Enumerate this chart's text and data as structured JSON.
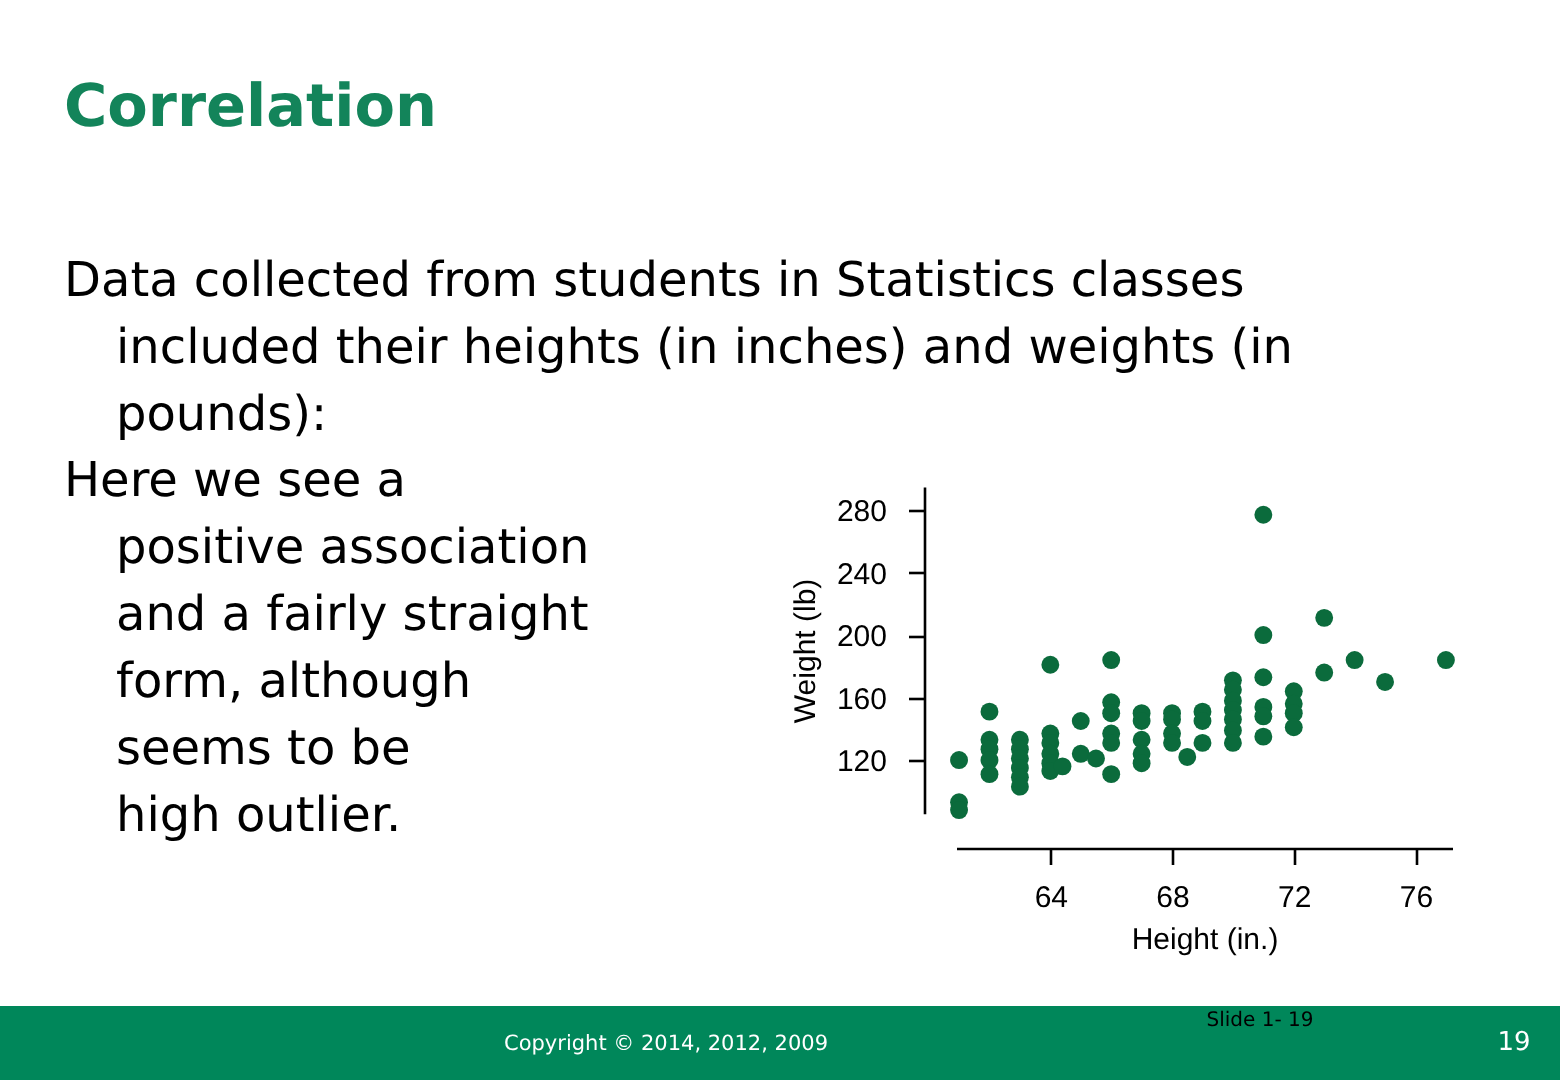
{
  "chart_data": {
    "type": "scatter",
    "title": "Correlation",
    "annotations": [
      "Data collected from students in Statistics classes\nincluded their heights (in inches) and weights (in\npounds):",
      "Here we see a\npositive association\nand a fairly straight\nform, although\nseems to be\nhigh outlier.",
      "Copyright © 2014, 2012, 2009",
      "Slide 1- 19",
      "19"
    ],
    "xlabel": "Height (in.)",
    "ylabel": "Weight (lb)",
    "series": [
      {
        "color": "#0b6b3c",
        "x": [
          61,
          61,
          61,
          62,
          62,
          62,
          62,
          62,
          63,
          63,
          63,
          63,
          63,
          63,
          64,
          64,
          64,
          64,
          64,
          64,
          64.4,
          65,
          65,
          65.5,
          66,
          66,
          66,
          66,
          66,
          66,
          67,
          67,
          67,
          67,
          67,
          68,
          68,
          68,
          68,
          68.5,
          69,
          69,
          69,
          70,
          70,
          70,
          70,
          70,
          70,
          70,
          71,
          71,
          71,
          71,
          71,
          71,
          72,
          72,
          72,
          72,
          73,
          73,
          74,
          75,
          77
        ],
        "values": [
          120,
          93,
          88,
          151,
          133,
          127,
          120,
          111,
          133,
          127,
          121,
          115,
          109,
          103,
          181,
          137,
          131,
          124,
          118,
          113,
          116,
          145,
          124,
          121,
          184,
          157,
          150,
          137,
          131,
          111,
          150,
          145,
          133,
          124,
          118,
          150,
          146,
          137,
          131,
          122,
          151,
          145,
          131,
          171,
          165,
          158,
          152,
          146,
          139,
          131,
          277,
          200,
          173,
          154,
          148,
          135,
          164,
          156,
          150,
          141,
          211,
          176,
          184,
          170,
          184
        ]
      }
    ],
    "xlim": [
      60.9,
      77.2
    ],
    "ylim": [
      86,
      295
    ],
    "xticks": [
      64,
      68,
      72,
      76
    ],
    "yticks": [
      120,
      160,
      200,
      240,
      280
    ],
    "marker": "circle"
  }
}
